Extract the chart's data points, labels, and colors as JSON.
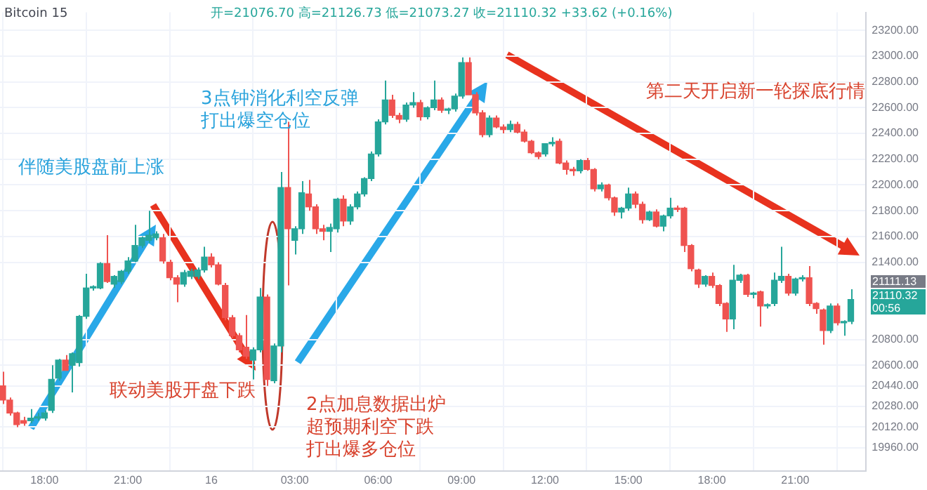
{
  "chart_data": {
    "type": "candlestick",
    "title": "Bitcoin 15",
    "annotations": [
      "开=21076.70 高=21126.73 低=21073.27 收=21110.32 +33.62 (+0.16%)",
      "伴随美股盘前上涨",
      "3点钟消化利空反弹",
      "打出爆空仓位",
      "联动美股开盘下跌",
      "2点加息数据出炉",
      "超预期利空下跌",
      "打出爆多仓位",
      "第二天开启新一轮探底行情",
      "21111.13",
      "21110.32",
      "00:56"
    ],
    "x": [
      "--06-15T16:30",
      "--06-15T16:45",
      "--06-15T17:00",
      "--06-15T17:15",
      "--06-15T17:30",
      "--06-15T17:45",
      "--06-15T18:00",
      "--06-15T18:15",
      "--06-15T18:30",
      "--06-15T18:45",
      "--06-15T19:00",
      "--06-15T19:15",
      "--06-15T19:30",
      "--06-15T19:45",
      "--06-15T20:00",
      "--06-15T20:15",
      "--06-15T20:30",
      "--06-15T20:45",
      "--06-15T21:00",
      "--06-15T21:15",
      "--06-15T21:30",
      "--06-15T21:45",
      "--06-15T22:00",
      "--06-15T22:15",
      "--06-15T22:30",
      "--06-15T22:45",
      "--06-15T23:00",
      "--06-15T23:15",
      "--06-15T23:30",
      "--06-15T23:45",
      "--06-16T00:00",
      "--06-16T00:15",
      "--06-16T00:30",
      "--06-16T00:45",
      "--06-16T01:00",
      "--06-16T01:15",
      "--06-16T01:30",
      "--06-16T01:45",
      "--06-16T02:00",
      "--06-16T02:15",
      "--06-16T02:30",
      "--06-16T02:45",
      "--06-16T03:00",
      "--06-16T03:15",
      "--06-16T03:30",
      "--06-16T03:45",
      "--06-16T04:00",
      "--06-16T04:15",
      "--06-16T04:30",
      "--06-16T04:45",
      "--06-16T05:00",
      "--06-16T05:15",
      "--06-16T05:30",
      "--06-16T05:45",
      "--06-16T06:00",
      "--06-16T06:15",
      "--06-16T06:30",
      "--06-16T06:45",
      "--06-16T07:00",
      "--06-16T07:15",
      "--06-16T07:30",
      "--06-16T07:45",
      "--06-16T08:00",
      "--06-16T08:15",
      "--06-16T08:30",
      "--06-16T08:45",
      "--06-16T09:00",
      "--06-16T09:15",
      "--06-16T09:30",
      "--06-16T09:45",
      "--06-16T10:00",
      "--06-16T10:15",
      "--06-16T10:30",
      "--06-16T10:45",
      "--06-16T11:00",
      "--06-16T11:15",
      "--06-16T11:30",
      "--06-16T11:45",
      "--06-16T12:00",
      "--06-16T12:15",
      "--06-16T12:30",
      "--06-16T12:45",
      "--06-16T13:00",
      "--06-16T13:15",
      "--06-16T13:30",
      "--06-16T13:45",
      "--06-16T14:00",
      "--06-16T14:15",
      "--06-16T14:30",
      "--06-16T14:45",
      "--06-16T15:00",
      "--06-16T15:15",
      "--06-16T15:30",
      "--06-16T15:45",
      "--06-16T16:00",
      "--06-16T16:15",
      "--06-16T16:30",
      "--06-16T16:45",
      "--06-16T17:00",
      "--06-16T17:15",
      "--06-16T17:30",
      "--06-16T17:45",
      "--06-16T18:00",
      "--06-16T18:15",
      "--06-16T18:30",
      "--06-16T18:45",
      "--06-16T19:00",
      "--06-16T19:15",
      "--06-16T19:30",
      "--06-16T19:45",
      "--06-16T20:00",
      "--06-16T20:15",
      "--06-16T20:30",
      "--06-16T20:45",
      "--06-16T21:00",
      "--06-16T21:15",
      "--06-16T21:30",
      "--06-16T21:45",
      "--06-16T22:00",
      "--06-16T22:15",
      "--06-16T22:30",
      "--06-16T22:45",
      "--06-16T23:00"
    ],
    "ohlc": [
      [
        20440,
        20550,
        20300,
        20330
      ],
      [
        20330,
        20350,
        20210,
        20230
      ],
      [
        20230,
        20240,
        20120,
        20140
      ],
      [
        20170,
        20200,
        20130,
        20150
      ],
      [
        20170,
        20260,
        20150,
        20190
      ],
      [
        20190,
        20230,
        20170,
        20200
      ],
      [
        20190,
        20250,
        20170,
        20230
      ],
      [
        20250,
        20600,
        20230,
        20490
      ],
      [
        20500,
        20650,
        20480,
        20640
      ],
      [
        20640,
        20680,
        20560,
        20560
      ],
      [
        20600,
        20700,
        20390,
        20690
      ],
      [
        20620,
        20990,
        20590,
        20980
      ],
      [
        20980,
        21310,
        20960,
        21200
      ],
      [
        21200,
        21220,
        21180,
        21210
      ],
      [
        21200,
        21400,
        21190,
        21390
      ],
      [
        21390,
        21610,
        21240,
        21250
      ],
      [
        21230,
        21300,
        21200,
        21290
      ],
      [
        21250,
        21340,
        21230,
        21330
      ],
      [
        21330,
        21440,
        21310,
        21410
      ],
      [
        21410,
        21690,
        21400,
        21530
      ],
      [
        21530,
        21600,
        21510,
        21590
      ],
      [
        21570,
        21800,
        21550,
        21610
      ],
      [
        21590,
        21640,
        21570,
        21620
      ],
      [
        21590,
        21620,
        21390,
        21410
      ],
      [
        21400,
        21420,
        21260,
        21280
      ],
      [
        21280,
        21300,
        21090,
        21230
      ],
      [
        21230,
        21340,
        21210,
        21320
      ],
      [
        21290,
        21350,
        21270,
        21330
      ],
      [
        21290,
        21360,
        21270,
        21340
      ],
      [
        21340,
        21520,
        21320,
        21440
      ],
      [
        21440,
        21470,
        21360,
        21380
      ],
      [
        21380,
        21400,
        21220,
        21230
      ],
      [
        21220,
        21240,
        20950,
        20970
      ],
      [
        20970,
        20990,
        20810,
        20830
      ],
      [
        20830,
        20850,
        20700,
        20720
      ],
      [
        20740,
        20990,
        20650,
        20670
      ],
      [
        20640,
        20740,
        20490,
        20720
      ],
      [
        20720,
        21200,
        20700,
        21130
      ],
      [
        21130,
        21150,
        20440,
        20490
      ],
      [
        20480,
        20770,
        20460,
        20750
      ],
      [
        20750,
        22100,
        20700,
        21980
      ],
      [
        21980,
        22490,
        21220,
        21660
      ],
      [
        21570,
        21680,
        21460,
        21660
      ],
      [
        21660,
        22030,
        21620,
        21940
      ],
      [
        21930,
        22040,
        21800,
        21830
      ],
      [
        21830,
        21850,
        21620,
        21660
      ],
      [
        21660,
        21690,
        21570,
        21640
      ],
      [
        21640,
        21700,
        21480,
        21670
      ],
      [
        21660,
        21900,
        21630,
        21890
      ],
      [
        21890,
        21920,
        21680,
        21720
      ],
      [
        21720,
        21850,
        21690,
        21830
      ],
      [
        21830,
        21950,
        21810,
        21930
      ],
      [
        21930,
        22060,
        21910,
        22050
      ],
      [
        22050,
        22260,
        22030,
        22240
      ],
      [
        22240,
        22510,
        22220,
        22490
      ],
      [
        22490,
        22810,
        22470,
        22660
      ],
      [
        22660,
        22700,
        22520,
        22540
      ],
      [
        22540,
        22560,
        22480,
        22510
      ],
      [
        22510,
        22640,
        22490,
        22620
      ],
      [
        22620,
        22720,
        22600,
        22640
      ],
      [
        22640,
        22660,
        22500,
        22530
      ],
      [
        22530,
        22610,
        22510,
        22600
      ],
      [
        22600,
        22810,
        22580,
        22660
      ],
      [
        22660,
        22680,
        22560,
        22580
      ],
      [
        22580,
        22600,
        22550,
        22590
      ],
      [
        22590,
        22710,
        22570,
        22690
      ],
      [
        22690,
        22990,
        22670,
        22950
      ],
      [
        22950,
        22990,
        22700,
        22700
      ],
      [
        22700,
        22720,
        22540,
        22560
      ],
      [
        22560,
        22580,
        22370,
        22390
      ],
      [
        22390,
        22540,
        22370,
        22520
      ],
      [
        22520,
        22540,
        22440,
        22450
      ],
      [
        22450,
        22470,
        22400,
        22430
      ],
      [
        22430,
        22500,
        22410,
        22470
      ],
      [
        22470,
        22490,
        22400,
        22410
      ],
      [
        22410,
        22430,
        22330,
        22340
      ],
      [
        22340,
        22350,
        22240,
        22250
      ],
      [
        22250,
        22260,
        22200,
        22220
      ],
      [
        22240,
        22320,
        22220,
        22320
      ],
      [
        22320,
        22370,
        22300,
        22330
      ],
      [
        22340,
        22360,
        22160,
        22170
      ],
      [
        22170,
        22190,
        22080,
        22120
      ],
      [
        22120,
        22140,
        22070,
        22110
      ],
      [
        22110,
        22200,
        22090,
        22190
      ],
      [
        22190,
        22210,
        22110,
        22120
      ],
      [
        22120,
        22130,
        21950,
        21970
      ],
      [
        21970,
        22020,
        21950,
        22000
      ],
      [
        22000,
        22010,
        21880,
        21900
      ],
      [
        21900,
        21910,
        21760,
        21790
      ],
      [
        21790,
        21830,
        21740,
        21820
      ],
      [
        21820,
        21980,
        21800,
        21930
      ],
      [
        21930,
        21950,
        21820,
        21850
      ],
      [
        21850,
        21870,
        21700,
        21730
      ],
      [
        21730,
        21800,
        21720,
        21790
      ],
      [
        21790,
        21810,
        21670,
        21680
      ],
      [
        21680,
        21770,
        21640,
        21760
      ],
      [
        21760,
        21900,
        21740,
        21820
      ],
      [
        21820,
        21840,
        21790,
        21810
      ],
      [
        21820,
        21830,
        21480,
        21530
      ],
      [
        21530,
        21540,
        21330,
        21350
      ],
      [
        21340,
        21350,
        21200,
        21230
      ],
      [
        21230,
        21300,
        21210,
        21290
      ],
      [
        21290,
        21320,
        21200,
        21220
      ],
      [
        21220,
        21230,
        21060,
        21080
      ],
      [
        21080,
        21090,
        20860,
        20960
      ],
      [
        20960,
        21380,
        20880,
        21260
      ],
      [
        21260,
        21310,
        21240,
        21300
      ],
      [
        21300,
        21310,
        21130,
        21150
      ],
      [
        21150,
        21170,
        21120,
        21160
      ],
      [
        21170,
        21180,
        20900,
        21060
      ],
      [
        21060,
        21080,
        21040,
        21070
      ],
      [
        21080,
        21320,
        21060,
        21260
      ],
      [
        21260,
        21520,
        21240,
        21290
      ],
      [
        21290,
        21310,
        21140,
        21160
      ],
      [
        21160,
        21280,
        21140,
        21270
      ],
      [
        21270,
        21300,
        21250,
        21280
      ],
      [
        21280,
        21370,
        21060,
        21080
      ],
      [
        21080,
        21090,
        21000,
        21040
      ],
      [
        21030,
        21040,
        20760,
        20870
      ],
      [
        20870,
        21080,
        20850,
        21060
      ],
      [
        21060,
        21080,
        20910,
        20930
      ],
      [
        20930,
        20950,
        20830,
        20940
      ],
      [
        20940,
        21190,
        20920,
        21110
      ]
    ],
    "colors": [
      "#ef5350",
      "#ef5350",
      "#ef5350",
      "#ef5350",
      "#26a69a",
      "#26a69a",
      "#26a69a",
      "#26a69a",
      "#26a69a",
      "#ef5350",
      "#26a69a",
      "#26a69a",
      "#26a69a",
      "#26a69a",
      "#26a69a",
      "#ef5350",
      "#26a69a",
      "#26a69a",
      "#26a69a",
      "#26a69a",
      "#26a69a",
      "#26a69a",
      "#26a69a",
      "#ef5350",
      "#ef5350",
      "#ef5350",
      "#26a69a",
      "#26a69a",
      "#26a69a",
      "#26a69a",
      "#ef5350",
      "#ef5350",
      "#ef5350",
      "#ef5350",
      "#ef5350",
      "#ef5350",
      "#26a69a",
      "#26a69a",
      "#ef5350",
      "#26a69a",
      "#26a69a",
      "#ef5350",
      "#26a69a",
      "#26a69a",
      "#ef5350",
      "#ef5350",
      "#ef5350",
      "#26a69a",
      "#26a69a",
      "#ef5350",
      "#26a69a",
      "#26a69a",
      "#26a69a",
      "#26a69a",
      "#26a69a",
      "#26a69a",
      "#ef5350",
      "#ef5350",
      "#26a69a",
      "#26a69a",
      "#ef5350",
      "#26a69a",
      "#26a69a",
      "#ef5350",
      "#26a69a",
      "#26a69a",
      "#26a69a",
      "#ef5350",
      "#ef5350",
      "#ef5350",
      "#26a69a",
      "#ef5350",
      "#ef5350",
      "#26a69a",
      "#ef5350",
      "#ef5350",
      "#ef5350",
      "#ef5350",
      "#26a69a",
      "#26a69a",
      "#ef5350",
      "#ef5350",
      "#ef5350",
      "#26a69a",
      "#ef5350",
      "#ef5350",
      "#26a69a",
      "#ef5350",
      "#ef5350",
      "#26a69a",
      "#26a69a",
      "#ef5350",
      "#ef5350",
      "#26a69a",
      "#ef5350",
      "#26a69a",
      "#26a69a",
      "#ef5350",
      "#ef5350",
      "#ef5350",
      "#ef5350",
      "#26a69a",
      "#ef5350",
      "#ef5350",
      "#ef5350",
      "#26a69a",
      "#26a69a",
      "#ef5350",
      "#26a69a",
      "#ef5350",
      "#26a69a",
      "#26a69a",
      "#26a69a",
      "#ef5350",
      "#26a69a",
      "#26a69a",
      "#ef5350",
      "#ef5350",
      "#ef5350",
      "#26a69a",
      "#ef5350",
      "#26a69a",
      "#26a69a"
    ],
    "xlim": [
      "--06-15T16:24",
      "--06-16T23:33"
    ],
    "xticks": [
      {
        "value": "--06-15T18:00",
        "label": "18:00"
      },
      {
        "value": "--06-15T21:00",
        "label": "21:00"
      },
      {
        "value": "--06-16T00:00",
        "label": "16"
      },
      {
        "value": "--06-16T03:00",
        "label": "03:00"
      },
      {
        "value": "--06-16T06:00",
        "label": "06:00"
      },
      {
        "value": "--06-16T09:00",
        "label": "09:00"
      },
      {
        "value": "--06-16T12:00",
        "label": "12:00"
      },
      {
        "value": "--06-16T15:00",
        "label": "15:00"
      },
      {
        "value": "--06-16T18:00",
        "label": "18:00"
      },
      {
        "value": "--06-16T21:00",
        "label": "21:00"
      }
    ],
    "ylim": [
      19780,
      23340
    ],
    "yticks": [
      {
        "value": 23200,
        "label": "23200.00"
      },
      {
        "value": 23000,
        "label": "23000.00"
      },
      {
        "value": 22800,
        "label": "22800.00"
      },
      {
        "value": 22600,
        "label": "22600.00"
      },
      {
        "value": 22400,
        "label": "22400.00"
      },
      {
        "value": 22200,
        "label": "22200.00"
      },
      {
        "value": 22000,
        "label": "22000.00"
      },
      {
        "value": 21800,
        "label": "21800.00"
      },
      {
        "value": 21600,
        "label": "21600.00"
      },
      {
        "value": 21400,
        "label": "21400.00"
      },
      {
        "value": 20800,
        "label": "20800.00"
      },
      {
        "value": 20600,
        "label": "20600.00"
      },
      {
        "value": 20440,
        "label": "20440.00"
      },
      {
        "value": 20280,
        "label": "20280.00"
      },
      {
        "value": 20120,
        "label": "20120.00"
      },
      {
        "value": 19960,
        "label": "19960.00"
      }
    ],
    "grid": true
  }
}
